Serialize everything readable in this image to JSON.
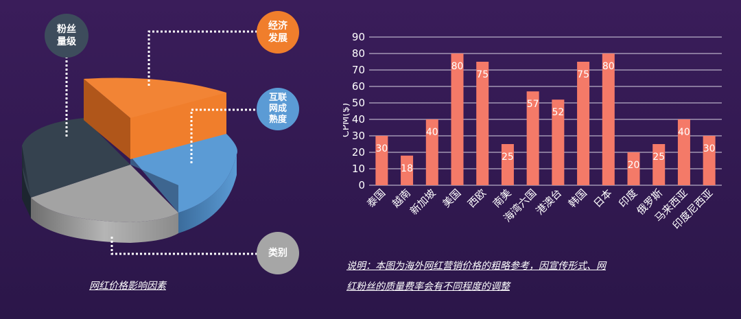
{
  "left": {
    "bubbles": {
      "fans": "粉丝\n量级",
      "economy": "经济\n发展",
      "internet": "互联\n网成\n熟度",
      "category": "类别"
    },
    "caption": "网红价格影响因素",
    "colors": {
      "fans": "#3a4a5a",
      "economy": "#f07e2c",
      "internet": "#5b9bd5",
      "category": "#a6a6a6"
    }
  },
  "chart_data": {
    "type": "bar",
    "ylabel": "CPM($)",
    "ylim": [
      0,
      90
    ],
    "yticks": [
      0,
      10,
      20,
      30,
      40,
      50,
      60,
      70,
      80,
      90
    ],
    "categories": [
      "泰国",
      "越南",
      "新加坡",
      "美国",
      "西欧",
      "南美",
      "海湾六国",
      "港澳台",
      "韩国",
      "日本",
      "印度",
      "俄罗斯",
      "马来西亚",
      "印度尼西亚"
    ],
    "values": [
      30,
      18,
      40,
      80,
      75,
      25,
      57,
      52,
      75,
      80,
      20,
      25,
      40,
      30
    ],
    "bar_color": "#f47a68",
    "grid": true
  },
  "note": {
    "line1": "说明：本图为海外网红营销价格的粗略参考，因宣传形式、网",
    "line2": "红粉丝的质量费率会有不同程度的调整"
  }
}
